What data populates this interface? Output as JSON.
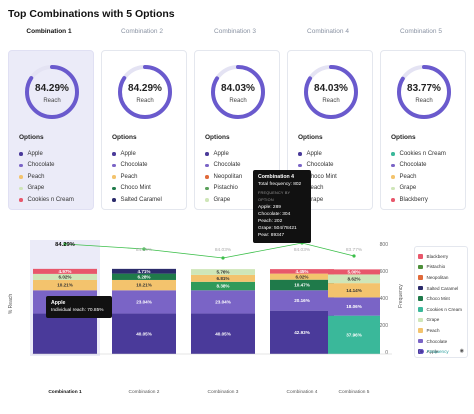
{
  "title": "Top Combinations with 5 Options",
  "tabs": [
    "Combination 1",
    "Combination 2",
    "Combination 3",
    "Combination 4",
    "Combination 5"
  ],
  "accent_color": "#6a5acd",
  "cards": [
    {
      "reach": "84.29%",
      "reach_value": 84.29,
      "reach_label": "Reach",
      "options_label": "Options",
      "options": [
        {
          "name": "Apple",
          "color": "#4a3a9a"
        },
        {
          "name": "Chocolate",
          "color": "#7a64c6"
        },
        {
          "name": "Peach",
          "color": "#f3c36d"
        },
        {
          "name": "Grape",
          "color": "#cfe6b8"
        },
        {
          "name": "Cookies n Cream",
          "color": "#e8576b"
        }
      ]
    },
    {
      "reach": "84.29%",
      "reach_value": 84.29,
      "reach_label": "Reach",
      "options_label": "Options",
      "options": [
        {
          "name": "Apple",
          "color": "#4a3a9a"
        },
        {
          "name": "Chocolate",
          "color": "#7a64c6"
        },
        {
          "name": "Peach",
          "color": "#f3c36d"
        },
        {
          "name": "Choco Mint",
          "color": "#1f7a4a"
        },
        {
          "name": "Salted Caramel",
          "color": "#2b2b6b"
        }
      ]
    },
    {
      "reach": "84.03%",
      "reach_value": 84.03,
      "reach_label": "Reach",
      "options_label": "Options",
      "options": [
        {
          "name": "Apple",
          "color": "#4a3a9a"
        },
        {
          "name": "Chocolate",
          "color": "#7a64c6"
        },
        {
          "name": "Neopolitan",
          "color": "#e06a3a"
        },
        {
          "name": "Pistachio",
          "color": "#5aa05a"
        },
        {
          "name": "Grape",
          "color": "#cfe6b8"
        }
      ]
    },
    {
      "reach": "84.03%",
      "reach_value": 84.03,
      "reach_label": "Reach",
      "options_label": "Options",
      "options": [
        {
          "name": "Apple",
          "color": "#4a3a9a"
        },
        {
          "name": "Chocolate",
          "color": "#7a64c6"
        },
        {
          "name": "Choco Mint",
          "color": "#1f7a4a"
        },
        {
          "name": "Peach",
          "color": "#f3c36d"
        },
        {
          "name": "Grape",
          "color": "#cfe6b8"
        }
      ]
    },
    {
      "reach": "83.77%",
      "reach_value": 83.77,
      "reach_label": "Reach",
      "options_label": "Options",
      "options": [
        {
          "name": "Cookies n Cream",
          "color": "#3ab89a"
        },
        {
          "name": "Chocolate",
          "color": "#7a64c6"
        },
        {
          "name": "Peach",
          "color": "#f3c36d"
        },
        {
          "name": "Grape",
          "color": "#cfe6b8"
        },
        {
          "name": "Blackberry",
          "color": "#e8576b"
        }
      ]
    }
  ],
  "tooltip_card": {
    "title": "Combination 4",
    "total": "Total frequency: 802",
    "subtitle": "FREQUENCY BY OPTION",
    "lines": [
      "Apple: 289",
      "Chocolate: 304",
      "Peach: 202",
      "Grape: 504/78421",
      "Pear: 89347"
    ]
  },
  "tooltip_bar": {
    "title": "Apple",
    "text": "Individual reach: 70.85%"
  },
  "chart_data": {
    "type": "bar",
    "categories": [
      "Combination 1",
      "Combination 2",
      "Combination 3",
      "Combination 4",
      "Combination 5"
    ],
    "ylabel": "% Reach",
    "y2label": "Frequency",
    "y2_ticks": [
      "800",
      "600",
      "400",
      "200",
      "0"
    ],
    "ylim": [
      0,
      100
    ],
    "reach_labels": [
      "84.29%",
      "84.29%",
      "84.03%",
      "84.03%",
      "83.77%"
    ],
    "reach": [
      84.29,
      84.29,
      84.03,
      84.03,
      83.77
    ],
    "stacks": [
      [
        {
          "v": 40.05,
          "label": "",
          "color": "#4a3a9a"
        },
        {
          "v": 23.04,
          "label": "23.04%",
          "color": "#7a64c6"
        },
        {
          "v": 10.21,
          "label": "10.21%",
          "color": "#f3c36d"
        },
        {
          "v": 6.02,
          "label": "6.02%",
          "color": "#cfe6b8"
        },
        {
          "v": 4.97,
          "label": "4.97%",
          "color": "#e8576b"
        }
      ],
      [
        {
          "v": 40.05,
          "label": "40.05%",
          "color": "#4a3a9a"
        },
        {
          "v": 23.04,
          "label": "23.04%",
          "color": "#7a64c6"
        },
        {
          "v": 10.21,
          "label": "10.21%",
          "color": "#f3c36d"
        },
        {
          "v": 6.28,
          "label": "6.28%",
          "color": "#1f7a4a"
        },
        {
          "v": 4.71,
          "label": "4.71%",
          "color": "#2b2b6b"
        }
      ],
      [
        {
          "v": 40.05,
          "label": "40.05%",
          "color": "#4a3a9a"
        },
        {
          "v": 23.04,
          "label": "23.04%",
          "color": "#7a64c6"
        },
        {
          "v": 8.38,
          "label": "8.38%",
          "color": "#2f9a5a"
        },
        {
          "v": 6.81,
          "label": "6.81%",
          "color": "#f3c36d"
        },
        {
          "v": 5.76,
          "label": "5.76%",
          "color": "#cfe6b8"
        }
      ],
      [
        {
          "v": 42.93,
          "label": "42.93%",
          "color": "#4a3a9a"
        },
        {
          "v": 20.16,
          "label": "20.16%",
          "color": "#7a64c6"
        },
        {
          "v": 10.47,
          "label": "10.47%",
          "color": "#1f7a4a"
        },
        {
          "v": 6.02,
          "label": "6.02%",
          "color": "#f3c36d"
        },
        {
          "v": 4.45,
          "label": "4.45%",
          "color": "#e8576b"
        }
      ],
      [
        {
          "v": 37.96,
          "label": "37.96%",
          "color": "#3ab89a"
        },
        {
          "v": 18.06,
          "label": "18.06%",
          "color": "#7a64c6"
        },
        {
          "v": 14.14,
          "label": "14.14%",
          "color": "#f3c36d"
        },
        {
          "v": 8.62,
          "label": "8.62%",
          "color": "#cfe6b8"
        },
        {
          "v": 5.0,
          "label": "5.00%",
          "color": "#e8576b"
        }
      ]
    ],
    "legend": [
      {
        "name": "Blackberry",
        "color": "#e8576b"
      },
      {
        "name": "Pistachio",
        "color": "#4d8f3a"
      },
      {
        "name": "Neopolitan",
        "color": "#e06a3a"
      },
      {
        "name": "Salted Caramel",
        "color": "#2b2b6b"
      },
      {
        "name": "Choco Mint",
        "color": "#1f7a4a"
      },
      {
        "name": "Cookies n Cream",
        "color": "#3ab89a"
      },
      {
        "name": "Grape",
        "color": "#cfe6b8"
      },
      {
        "name": "Peach",
        "color": "#f3c36d"
      },
      {
        "name": "Chocolate",
        "color": "#7a64c6"
      },
      {
        "name": "Apple",
        "color": "#4a3a9a"
      }
    ],
    "legend_toggle": "Frequency",
    "line_color": "#3cbf4a"
  }
}
